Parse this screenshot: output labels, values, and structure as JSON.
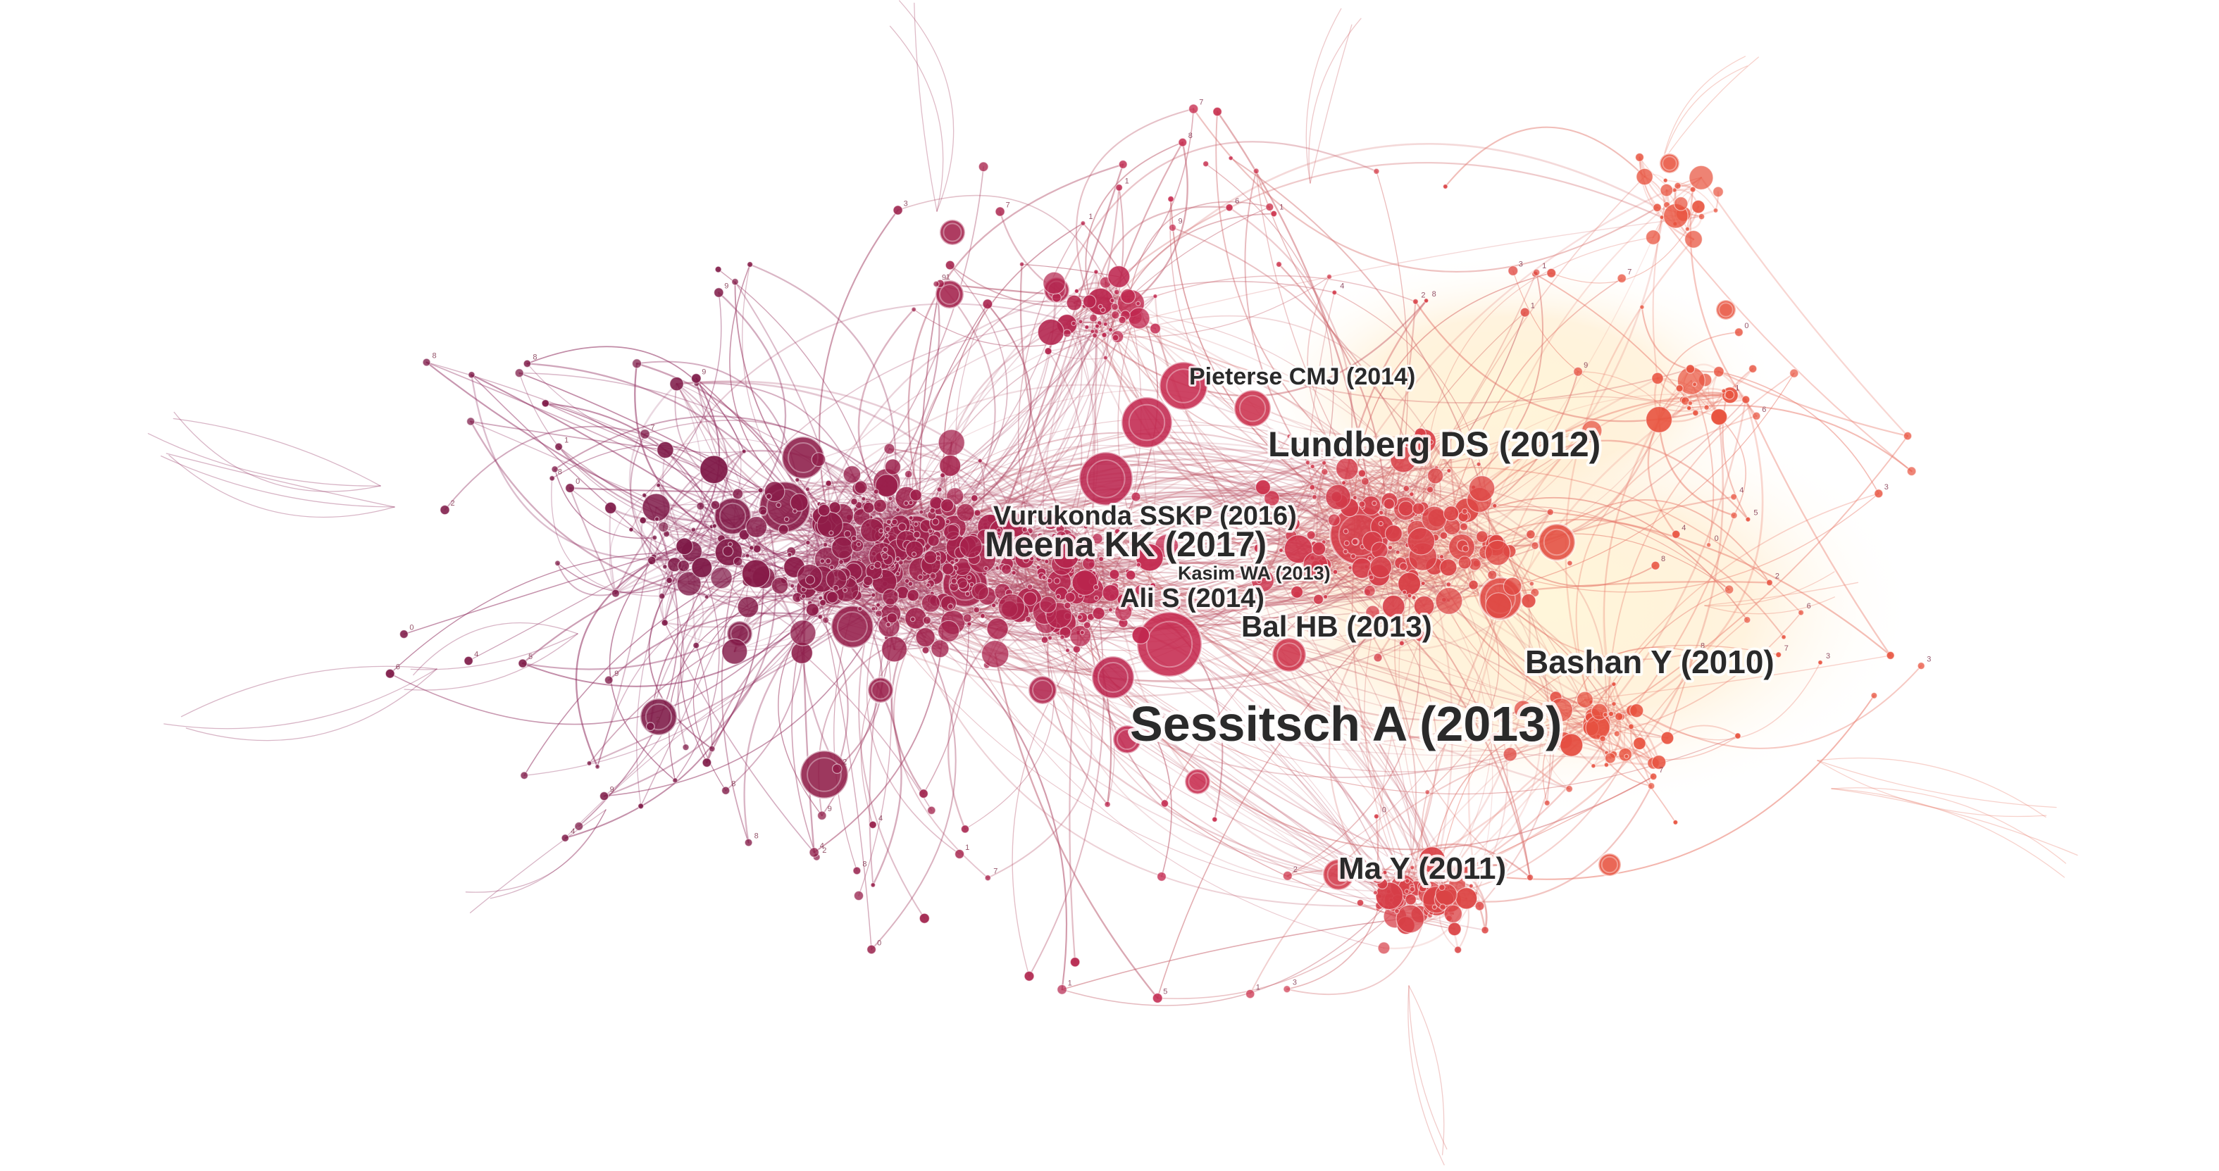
{
  "network": {
    "labels": [
      {
        "id": "pieterse",
        "text": "Pieterse CMJ (2014)"
      },
      {
        "id": "lundberg",
        "text": "Lundberg DS (2012)"
      },
      {
        "id": "vurukonda",
        "text": "Vurukonda SSKP (2016)"
      },
      {
        "id": "meena",
        "text": "Meena KK (2017)"
      },
      {
        "id": "kasim",
        "text": "Kasim WA (2013)"
      },
      {
        "id": "ali",
        "text": "Ali S (2014)"
      },
      {
        "id": "bal",
        "text": "Bal HB (2013)"
      },
      {
        "id": "bashan",
        "text": "Bashan Y (2010)"
      },
      {
        "id": "sessitsch",
        "text": "Sessitsch A (2013)"
      },
      {
        "id": "ma",
        "text": "Ma Y (2011)"
      }
    ],
    "colors": {
      "dark_cluster": "#7d1846",
      "mid_cluster": "#c4284f",
      "light_cluster": "#e8533f",
      "edge_dark": "#8e2a5c",
      "edge_light": "#e97a6b",
      "glow": "#fff1c9"
    }
  }
}
